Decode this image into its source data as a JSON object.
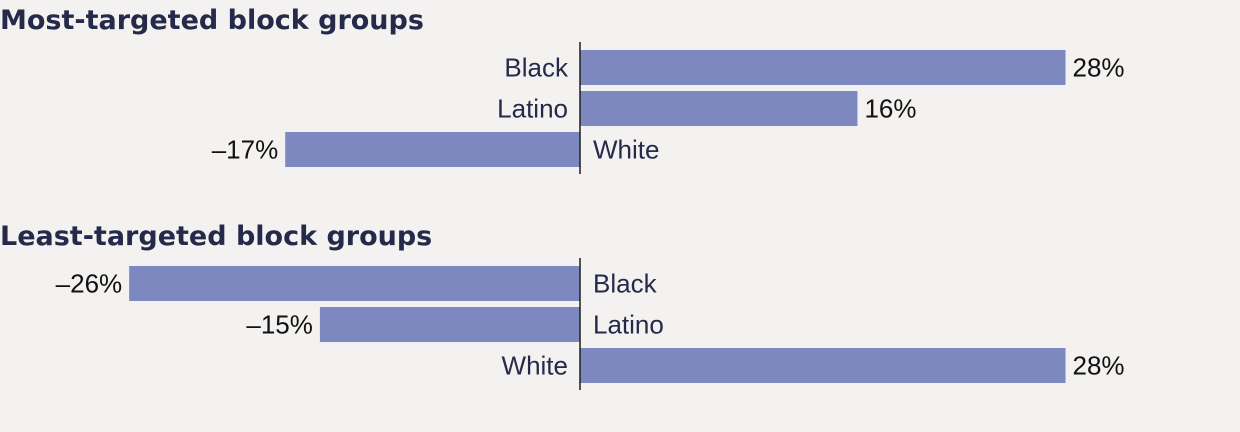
{
  "colors": {
    "background": "#f3f2f0",
    "bar": "#7d88c0",
    "axis": "#1e1e1e",
    "title": "#262a4a",
    "category_label": "#262a4a",
    "value_label": "#111111"
  },
  "chart_data": [
    {
      "type": "bar",
      "orientation": "horizontal",
      "title": "Most-targeted block groups",
      "categories": [
        "Black",
        "Latino",
        "White"
      ],
      "values": [
        28,
        16,
        -17
      ],
      "value_labels": [
        "28%",
        "16%",
        "–17%"
      ],
      "xlim": [
        -26,
        28
      ],
      "grid": false
    },
    {
      "type": "bar",
      "orientation": "horizontal",
      "title": "Least-targeted block groups",
      "categories": [
        "Black",
        "Latino",
        "White"
      ],
      "values": [
        -26,
        -15,
        28
      ],
      "value_labels": [
        "–26%",
        "–15%",
        "28%"
      ],
      "xlim": [
        -26,
        28
      ],
      "grid": false
    }
  ]
}
